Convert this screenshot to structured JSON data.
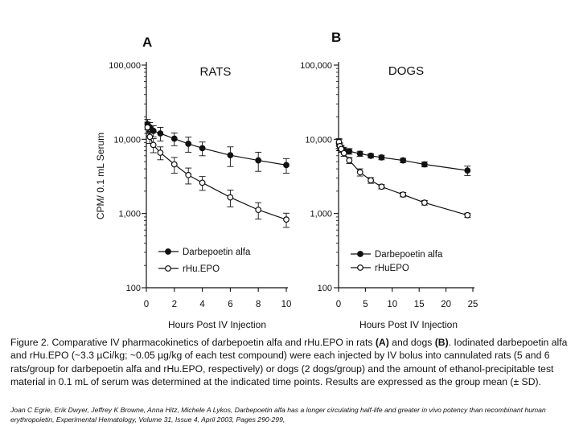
{
  "figure": {
    "ylabel": "CPM/ 0.1 mL Serum",
    "xlabel": "Hours Post IV Injection"
  },
  "chart_data": [
    {
      "type": "line",
      "panel_letter": "A",
      "title": "RATS",
      "xlabel": "Hours Post IV Injection",
      "ylabel": "CPM/ 0.1 mL Serum",
      "yscale": "log",
      "xlim": [
        0,
        10
      ],
      "ylim": [
        100,
        100000
      ],
      "xticks": [
        0,
        2,
        4,
        6,
        8,
        10
      ],
      "yticks": [
        100,
        1000,
        10000,
        100000
      ],
      "ytick_labels": [
        "100",
        "1,000",
        "10,000",
        "100,000"
      ],
      "legend": [
        "Darbepoetin alfa",
        "rHu.EPO"
      ],
      "legend_position": "bottom-left",
      "series": [
        {
          "name": "Darbepoetin alfa",
          "marker": "filled-circle",
          "x": [
            0.083,
            0.25,
            0.5,
            1,
            2,
            3,
            4,
            6,
            8,
            10
          ],
          "y": [
            16000,
            14500,
            13000,
            12000,
            10200,
            8700,
            7600,
            6100,
            5200,
            4500
          ],
          "err": [
            2500,
            2300,
            2200,
            2500,
            2000,
            2000,
            1600,
            1800,
            1500,
            1000
          ]
        },
        {
          "name": "rHu.EPO",
          "marker": "open-circle",
          "x": [
            0.083,
            0.25,
            0.5,
            1,
            2,
            3,
            4,
            6,
            8,
            10
          ],
          "y": [
            14500,
            10800,
            8400,
            6600,
            4600,
            3300,
            2600,
            1650,
            1120,
            830
          ],
          "err": [
            2500,
            2000,
            1800,
            1300,
            1100,
            800,
            550,
            420,
            280,
            180
          ]
        }
      ]
    },
    {
      "type": "line",
      "panel_letter": "B",
      "title": "DOGS",
      "xlabel": "Hours Post IV Injection",
      "yscale": "log",
      "xlim": [
        0,
        25
      ],
      "ylim": [
        100,
        100000
      ],
      "xticks": [
        0,
        5,
        10,
        15,
        20,
        25
      ],
      "yticks": [
        100,
        1000,
        10000,
        100000
      ],
      "ytick_labels": [
        "100",
        "1,000",
        "10,000",
        "100,000"
      ],
      "legend": [
        "Darbepoetin alfa",
        "rHuEPO"
      ],
      "legend_position": "bottom-left",
      "series": [
        {
          "name": "Darbepoetin alfa",
          "marker": "filled-circle",
          "x": [
            0.083,
            0.25,
            0.5,
            1,
            2,
            4,
            6,
            8,
            12,
            16,
            24
          ],
          "y": [
            8800,
            8000,
            7500,
            7100,
            6900,
            6400,
            6000,
            5700,
            5200,
            4600,
            3800
          ],
          "err": [
            1200,
            900,
            800,
            700,
            600,
            500,
            400,
            400,
            350,
            350,
            550
          ]
        },
        {
          "name": "rHuEPO",
          "marker": "open-circle",
          "x": [
            0.083,
            0.25,
            0.5,
            1,
            2,
            4,
            6,
            8,
            12,
            16,
            24
          ],
          "y": [
            9200,
            8100,
            7400,
            6500,
            5200,
            3600,
            2800,
            2300,
            1800,
            1400,
            950
          ],
          "err": [
            1000,
            800,
            700,
            600,
            500,
            400,
            250,
            150,
            120,
            100,
            60
          ]
        }
      ]
    }
  ],
  "caption": {
    "prefix": "Figure 2. Comparative IV pharmacokinetics of darbepoetin alfa and rHu.EPO in rats ",
    "a_label": "(A)",
    "mid": " and dogs ",
    "b_label": "(B)",
    "rest": ". Iodinated darbepoetin alfa and rHu.EPO (~3.3 µCi/kg; ~0.05 µg/kg of each test compound) were each injected by IV bolus into cannulated rats (5 and 6 rats/group for darbepoetin alfa and rHu.EPO, respectively) or dogs (2 dogs/group) and the amount of ethanol-precipitable test material in 0.1 mL of serum was determined at the indicated time points. Results are expressed as the group mean (± SD)."
  },
  "citation": "Joan C Egrie, Erik Dwyer, Jeffrey K Browne, Anna Hitz, Michele A Lykos, Darbepoetin alfa has a longer circulating half-life and greater in vivo potency than recombinant human erythropoietin, Experimental Hematology, Volume 31, Issue 4, April 2003, Pages 290-299,"
}
